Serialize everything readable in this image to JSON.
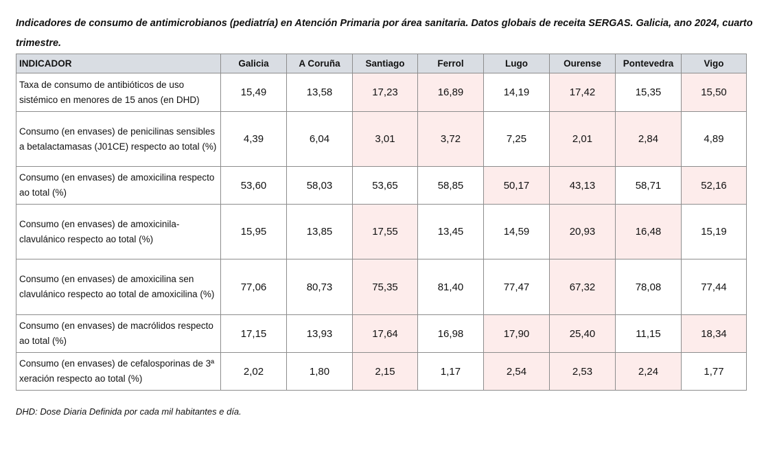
{
  "title": "Indicadores de consumo de antimicrobianos (pediatría) en Atención Primaria por área sanitaria. Datos globais de receita SERGAS. Galicia, ano 2024, cuarto trimestre.",
  "highlight_color": "#fdeceb",
  "header_color": "#d9dde3",
  "table": {
    "columns": [
      "INDICADOR",
      "Galicia",
      "A Coruña",
      "Santiago",
      "Ferrol",
      "Lugo",
      "Ourense",
      "Pontevedra",
      "Vigo"
    ],
    "rows": [
      {
        "indicator": "Taxa de consumo de antibióticos de uso sistémico en menores de 15 anos (en DHD)",
        "values": [
          "15,49",
          "13,58",
          "17,23",
          "16,89",
          "14,19",
          "17,42",
          "15,35",
          "15,50"
        ],
        "highlighted": [
          false,
          false,
          true,
          true,
          false,
          true,
          false,
          true
        ]
      },
      {
        "indicator": "Consumo (en envases) de penicilinas sensibles a betalactamasas (J01CE) respecto ao total (%)",
        "values": [
          "4,39",
          "6,04",
          "3,01",
          "3,72",
          "7,25",
          "2,01",
          "2,84",
          "4,89"
        ],
        "highlighted": [
          false,
          false,
          true,
          true,
          false,
          true,
          true,
          false
        ]
      },
      {
        "indicator": "Consumo (en envases) de amoxicilina respecto ao total (%)",
        "values": [
          "53,60",
          "58,03",
          "53,65",
          "58,85",
          "50,17",
          "43,13",
          "58,71",
          "52,16"
        ],
        "highlighted": [
          false,
          false,
          false,
          false,
          true,
          true,
          false,
          true
        ]
      },
      {
        "indicator": "Consumo (en envases) de amoxicinila-clavulánico respecto ao total (%)",
        "values": [
          "15,95",
          "13,85",
          "17,55",
          "13,45",
          "14,59",
          "20,93",
          "16,48",
          "15,19"
        ],
        "highlighted": [
          false,
          false,
          true,
          false,
          false,
          true,
          true,
          false
        ]
      },
      {
        "indicator": "Consumo (en envases) de amoxicilina sen clavulánico respecto ao total de amoxicilina (%)",
        "values": [
          "77,06",
          "80,73",
          "75,35",
          "81,40",
          "77,47",
          "67,32",
          "78,08",
          "77,44"
        ],
        "highlighted": [
          false,
          false,
          true,
          false,
          false,
          true,
          false,
          false
        ]
      },
      {
        "indicator": "Consumo (en envases) de macrólidos respecto ao total (%)",
        "values": [
          "17,15",
          "13,93",
          "17,64",
          "16,98",
          "17,90",
          "25,40",
          "11,15",
          "18,34"
        ],
        "highlighted": [
          false,
          false,
          true,
          false,
          true,
          true,
          false,
          true
        ]
      },
      {
        "indicator": "Consumo (en envases) de cefalosporinas de 3ª xeración respecto ao total (%)",
        "values": [
          "2,02",
          "1,80",
          "2,15",
          "1,17",
          "2,54",
          "2,53",
          "2,24",
          "1,77"
        ],
        "highlighted": [
          false,
          false,
          true,
          false,
          true,
          true,
          true,
          false
        ]
      }
    ]
  },
  "footnote": "DHD: Dose Diaria Definida por cada mil habitantes e día."
}
